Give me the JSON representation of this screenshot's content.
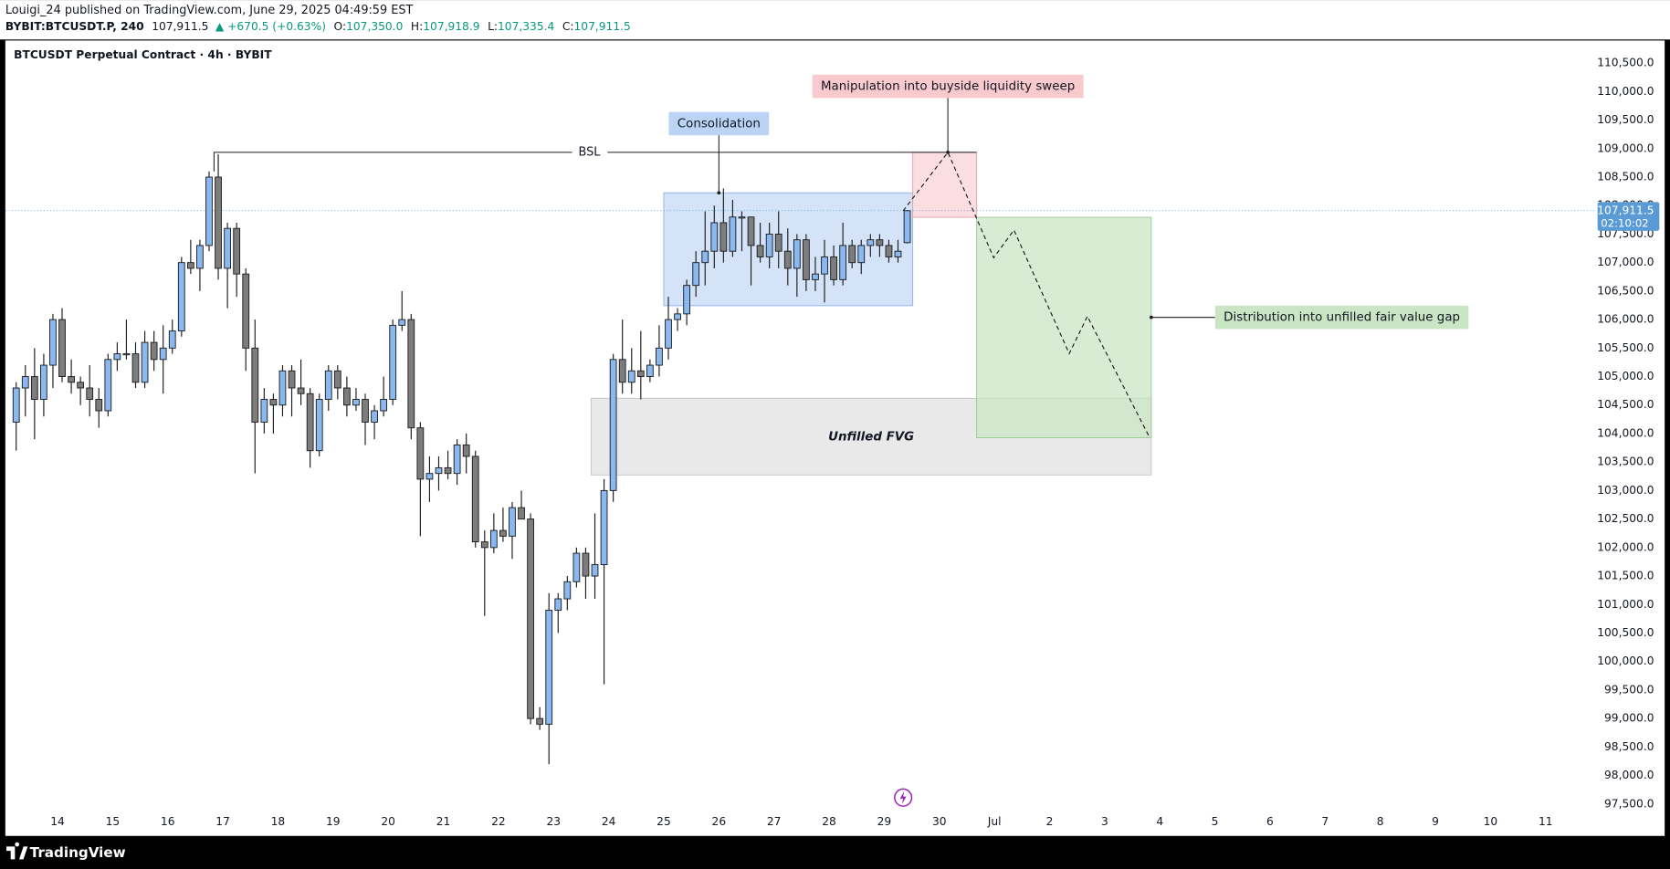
{
  "header": {
    "publisher": "Louigi_24 published on TradingView.com, June 29, 2025 04:49:59 EST",
    "symbol": "BYBIT:BTCUSDT.P, 240",
    "last": "107,911.5",
    "change": "▲ +670.5 (+0.63%)",
    "ohlc": [
      {
        "label": "O:",
        "value": "107,350.0"
      },
      {
        "label": "H:",
        "value": "107,918.9"
      },
      {
        "label": "L:",
        "value": "107,335.4"
      },
      {
        "label": "C:",
        "value": "107,911.5"
      }
    ]
  },
  "footer": {
    "brand": "TradingView"
  },
  "chart_data": {
    "type": "candlestick",
    "title": "BTCUSDT Perpetual Contract · 4h · BYBIT",
    "up_color": "#8ab8f0",
    "down_color": "#7d7d7d",
    "x": [
      13.1667,
      13.3333,
      13.5,
      13.6667,
      13.8333,
      14,
      14.1667,
      14.3333,
      14.5,
      14.6667,
      14.8333,
      15,
      15.1667,
      15.3333,
      15.5,
      15.6667,
      15.8333,
      16,
      16.1667,
      16.3333,
      16.5,
      16.6667,
      16.8333,
      17,
      17.1667,
      17.3333,
      17.5,
      17.6667,
      17.8333,
      18,
      18.1667,
      18.3333,
      18.5,
      18.6667,
      18.8333,
      19,
      19.1667,
      19.3333,
      19.5,
      19.6667,
      19.8333,
      20,
      20.1667,
      20.3333,
      20.5,
      20.6667,
      20.8333,
      21,
      21.1667,
      21.3333,
      21.5,
      21.6667,
      21.8333,
      22,
      22.1667,
      22.3333,
      22.5,
      22.6667,
      22.8333,
      23,
      23.1667,
      23.3333,
      23.5,
      23.6667,
      23.8333,
      24,
      24.1667,
      24.3333,
      24.5,
      24.6667,
      24.8333,
      25,
      25.1667,
      25.3333,
      25.5,
      25.6667,
      25.8333,
      26,
      26.1667,
      26.3333,
      26.5,
      26.6667,
      26.8333,
      27,
      27.1667,
      27.3333,
      27.5,
      27.6667,
      27.8333,
      28,
      28.1667,
      28.3333,
      28.5,
      28.6667,
      28.8333,
      29,
      29.1667,
      29.3333
    ],
    "open": [
      104200,
      104800,
      105000,
      104600,
      105200,
      106000,
      105000,
      104900,
      104800,
      104600,
      104400,
      105300,
      105400,
      105400,
      104900,
      105600,
      105300,
      105500,
      105800,
      107000,
      106900,
      107300,
      108500,
      106900,
      107600,
      106800,
      105500,
      104200,
      104600,
      104500,
      105100,
      104800,
      104700,
      103700,
      104600,
      105100,
      104800,
      104500,
      104600,
      104200,
      104400,
      104600,
      105900,
      106000,
      104100,
      103200,
      103300,
      103400,
      103300,
      103800,
      103600,
      102100,
      102000,
      102300,
      102200,
      102700,
      102500,
      99000,
      98900,
      100900,
      101100,
      101400,
      101900,
      101500,
      101700,
      103000,
      105300,
      104900,
      105100,
      105000,
      105200,
      105500,
      106000,
      106100,
      106600,
      107000,
      107200,
      107700,
      107200,
      107800,
      107800,
      107300,
      107100,
      107500,
      107200,
      106900,
      107400,
      106700,
      106800,
      107100,
      106700,
      107300,
      107000,
      107300,
      107400,
      107300,
      107100,
      107350
    ],
    "high": [
      104900,
      105200,
      105500,
      105400,
      106100,
      106200,
      105300,
      105000,
      105200,
      104800,
      105400,
      105600,
      106000,
      105600,
      105800,
      105800,
      105900,
      106000,
      107100,
      107400,
      107400,
      108600,
      108900,
      107700,
      107700,
      106900,
      106000,
      104800,
      104700,
      105200,
      105200,
      105300,
      104800,
      104700,
      105200,
      105200,
      105000,
      104800,
      104700,
      104500,
      105000,
      106000,
      106500,
      106100,
      104200,
      103600,
      103600,
      103700,
      103900,
      104000,
      103700,
      102300,
      102600,
      102700,
      102800,
      103000,
      102600,
      99200,
      101200,
      101200,
      101500,
      102000,
      102000,
      102600,
      103200,
      105400,
      106000,
      105500,
      105800,
      105300,
      105900,
      106400,
      106200,
      106700,
      107200,
      107900,
      108000,
      108300,
      108100,
      107900,
      107800,
      107700,
      107700,
      107900,
      107600,
      107500,
      107500,
      107100,
      107400,
      107300,
      107700,
      107400,
      107400,
      107500,
      107500,
      107400,
      107400,
      107918.9
    ],
    "low": [
      103700,
      104300,
      103900,
      104300,
      104800,
      104900,
      104700,
      104500,
      104300,
      104100,
      104300,
      105100,
      105300,
      104800,
      104800,
      105100,
      104700,
      105400,
      105700,
      106800,
      106500,
      107200,
      106700,
      106200,
      106400,
      105100,
      103300,
      104000,
      104000,
      104300,
      104300,
      104500,
      103400,
      103600,
      104400,
      104600,
      104300,
      104400,
      103800,
      103900,
      104300,
      104500,
      105800,
      103900,
      102200,
      102800,
      103000,
      103200,
      103100,
      103300,
      102000,
      100800,
      101900,
      102100,
      101800,
      102500,
      98900,
      98800,
      98200,
      100500,
      100900,
      101300,
      101100,
      101100,
      99600,
      102800,
      104700,
      104700,
      104600,
      104900,
      105000,
      105300,
      105800,
      105900,
      106400,
      106600,
      106900,
      107000,
      107100,
      107200,
      106600,
      107000,
      106900,
      106900,
      106600,
      106400,
      106500,
      106500,
      106300,
      106600,
      106600,
      106900,
      106800,
      107100,
      107100,
      107000,
      107000,
      107335.4
    ],
    "close": [
      104800,
      105000,
      104600,
      105200,
      106000,
      105000,
      104900,
      104800,
      104600,
      104400,
      105300,
      105400,
      105400,
      104900,
      105600,
      105300,
      105500,
      105800,
      107000,
      106900,
      107300,
      108500,
      106900,
      107600,
      106800,
      105500,
      104200,
      104600,
      104500,
      105100,
      104800,
      104700,
      103700,
      104600,
      105100,
      104800,
      104500,
      104600,
      104200,
      104400,
      104600,
      105900,
      106000,
      104100,
      103200,
      103300,
      103400,
      103300,
      103800,
      103600,
      102100,
      102000,
      102300,
      102200,
      102700,
      102500,
      99000,
      98900,
      100900,
      101100,
      101400,
      101900,
      101500,
      101700,
      103000,
      105300,
      104900,
      105100,
      105000,
      105200,
      105500,
      106000,
      106100,
      106600,
      107000,
      107200,
      107700,
      107200,
      107800,
      107800,
      107300,
      107100,
      107500,
      107200,
      106900,
      107400,
      106700,
      106800,
      107100,
      106700,
      107300,
      107000,
      107300,
      107400,
      107300,
      107100,
      107200,
      107911.5
    ],
    "xlim": [
      13.053,
      41.75
    ],
    "xticks": [
      14,
      15,
      16,
      17,
      18,
      19,
      20,
      21,
      22,
      23,
      24,
      25,
      26,
      27,
      28,
      29,
      30,
      {
        "value": 31,
        "label": "Jul"
      },
      {
        "value": 32,
        "label": "2"
      },
      {
        "value": 33,
        "label": "3"
      },
      {
        "value": 34,
        "label": "4"
      },
      {
        "value": 35,
        "label": "5"
      },
      {
        "value": 36,
        "label": "6"
      },
      {
        "value": 37,
        "label": "7"
      },
      {
        "value": 38,
        "label": "8"
      },
      {
        "value": 39,
        "label": "9"
      },
      {
        "value": 40,
        "label": "10"
      },
      {
        "value": 41,
        "label": "11"
      }
    ],
    "ylim": [
      96940,
      110915
    ],
    "yticks": [
      {
        "value": 97500,
        "label": "97,500.0"
      },
      {
        "value": 98000,
        "label": "98,000.0"
      },
      {
        "value": 98500,
        "label": "98,500.0"
      },
      {
        "value": 99000,
        "label": "99,000.0"
      },
      {
        "value": 99500,
        "label": "99,500.0"
      },
      {
        "value": 100000,
        "label": "100,000.0"
      },
      {
        "value": 100500,
        "label": "100,500.0"
      },
      {
        "value": 101000,
        "label": "101,000.0"
      },
      {
        "value": 101500,
        "label": "101,500.0"
      },
      {
        "value": 102000,
        "label": "102,000.0"
      },
      {
        "value": 102500,
        "label": "102,500.0"
      },
      {
        "value": 103000,
        "label": "103,000.0"
      },
      {
        "value": 103500,
        "label": "103,500.0"
      },
      {
        "value": 104000,
        "label": "104,000.0"
      },
      {
        "value": 104500,
        "label": "104,500.0"
      },
      {
        "value": 105000,
        "label": "105,000.0"
      },
      {
        "value": 105500,
        "label": "105,500.0"
      },
      {
        "value": 106000,
        "label": "106,000.0"
      },
      {
        "value": 106500,
        "label": "106,500.0"
      },
      {
        "value": 107000,
        "label": "107,000.0"
      },
      {
        "value": 107500,
        "label": "107,500.0"
      },
      {
        "value": 108000,
        "label": "108,000.0"
      },
      {
        "value": 108500,
        "label": "108,500.0"
      },
      {
        "value": 109000,
        "label": "109,000.0"
      },
      {
        "value": 109500,
        "label": "109,500.0"
      },
      {
        "value": 110000,
        "label": "110,000.0"
      },
      {
        "value": 110500,
        "label": "110,500.0"
      }
    ],
    "last_price": 107911.5,
    "last_price_label": "107,911.5",
    "countdown": "02:10:02",
    "boxes": [
      {
        "x": [
          23.681,
          33.845
        ],
        "y": [
          103273,
          104619
        ],
        "fill": "#e2e2e2",
        "stroke": "#c4c4c4",
        "text": "Unfilled FVG"
      },
      {
        "x": [
          25.0,
          29.517
        ],
        "y": [
          106244,
          108225
        ],
        "fill": "#c6d9f6",
        "stroke": "#8fb2e6"
      },
      {
        "x": [
          29.517,
          30.676
        ],
        "y": [
          107795,
          108935
        ],
        "fill": "#f9d3d6",
        "stroke": "#e9a3a9"
      },
      {
        "x": [
          30.676,
          33.845
        ],
        "y": [
          103927,
          107795
        ],
        "fill": "#c9e5c4",
        "stroke": "#9ccc95"
      }
    ],
    "level": {
      "text": "BSL",
      "x": [
        16.84,
        30.676
      ],
      "y": 108935,
      "from_y": 108600,
      "label_x": 23.65,
      "color": "#e53935"
    },
    "callouts": [
      {
        "text": "Consolidation",
        "x": 26.0,
        "y": 109439,
        "to_x": 26.0,
        "to_y": 108225,
        "fill": "#bbd3f5"
      },
      {
        "text": "Manipulation into buyside liquidity sweep",
        "x": 30.155,
        "y": 110093,
        "to_x": 30.155,
        "to_y": 108935,
        "fill": "#f8c9cd"
      },
      {
        "text": "Distribution into unfilled fair value gap",
        "x": 37.169,
        "y": 106039,
        "to_x": 33.845,
        "to_y": 106039,
        "fill": "#c9e5c4"
      }
    ],
    "projection": {
      "x": [
        29.343,
        30.155,
        30.986,
        31.353,
        32.357,
        32.686,
        33.807
      ],
      "y": [
        107907,
        108935,
        107085,
        107571,
        105403,
        106057,
        103946
      ]
    }
  }
}
